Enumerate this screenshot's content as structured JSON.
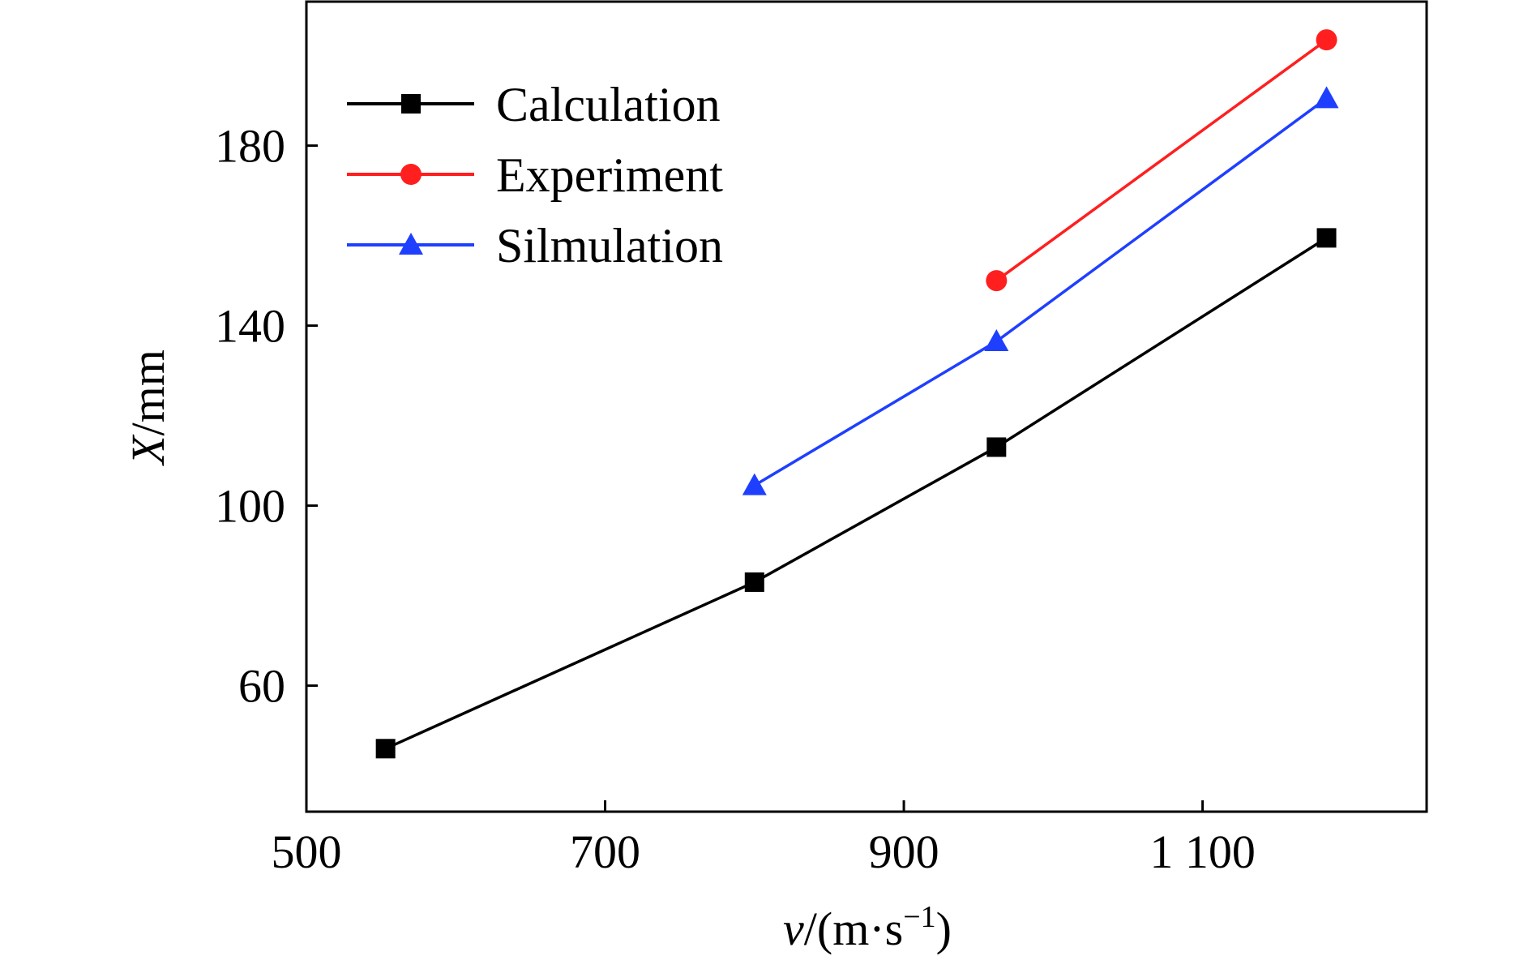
{
  "chart_data": {
    "type": "line",
    "title": "",
    "xlabel": {
      "var": "v",
      "unit": "/(m·s",
      "exp": "−1",
      "close": ")"
    },
    "ylabel": {
      "var": "X",
      "unit": "/mm"
    },
    "xlim": [
      500,
      1250
    ],
    "ylim": [
      32,
      212
    ],
    "xticks": [
      500,
      700,
      900,
      1100
    ],
    "xtick_labels": [
      "500",
      "700",
      "900",
      "1 100"
    ],
    "yticks": [
      60,
      100,
      140,
      180
    ],
    "ytick_labels": [
      "60",
      "100",
      "140",
      "180"
    ],
    "grid": false,
    "legend_position": "top-left",
    "series": [
      {
        "name": "Calculation",
        "color": "#000000",
        "marker": "square",
        "x": [
          553,
          800,
          962,
          1183
        ],
        "y": [
          46,
          83,
          113,
          159.5
        ]
      },
      {
        "name": "Experiment",
        "color": "#ff1f1f",
        "marker": "circle",
        "x": [
          962,
          1183
        ],
        "y": [
          150,
          203.5
        ]
      },
      {
        "name": "Silmulation",
        "color": "#1f3fff",
        "marker": "triangle",
        "x": [
          800,
          962,
          1183
        ],
        "y": [
          104.5,
          136.5,
          190.5
        ]
      }
    ]
  }
}
